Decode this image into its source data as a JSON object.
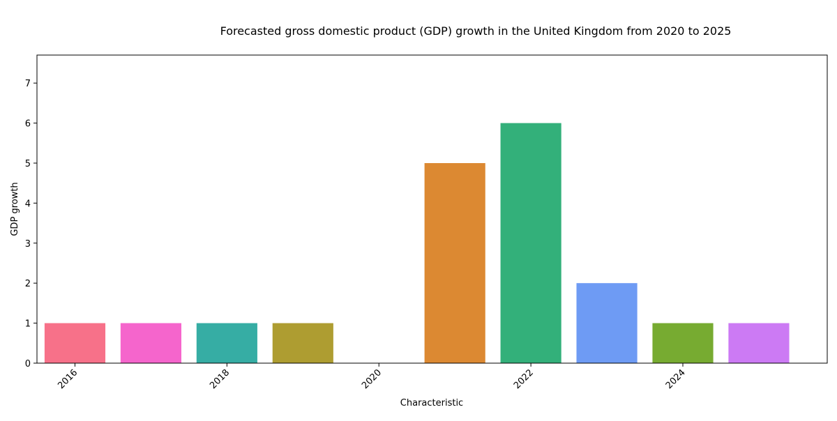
{
  "chart_data": {
    "type": "bar",
    "title": "Forecasted gross domestic product (GDP) growth in the United Kingdom from 2020 to 2025",
    "xlabel": "Characteristic",
    "ylabel": "GDP growth",
    "x": [
      2016,
      2017,
      2018,
      2019,
      2020,
      2021,
      2022,
      2023,
      2024,
      2025
    ],
    "values": [
      1,
      1,
      1,
      1,
      0,
      5,
      6,
      2,
      1,
      1
    ],
    "colors": [
      "#f77189",
      "#f565cc",
      "#36ada4",
      "#ae9d31",
      "#f77189",
      "#dc8932",
      "#33b07a",
      "#6e9bf4",
      "#77ab31",
      "#cc7af4"
    ],
    "xlim": [
      2015.5,
      2025.9
    ],
    "ylim": [
      0,
      7.7
    ],
    "xticks": [
      2016,
      2018,
      2020,
      2022,
      2024
    ],
    "yticks": [
      0,
      1,
      2,
      3,
      4,
      5,
      6,
      7
    ],
    "grid": false,
    "legend": "none"
  }
}
